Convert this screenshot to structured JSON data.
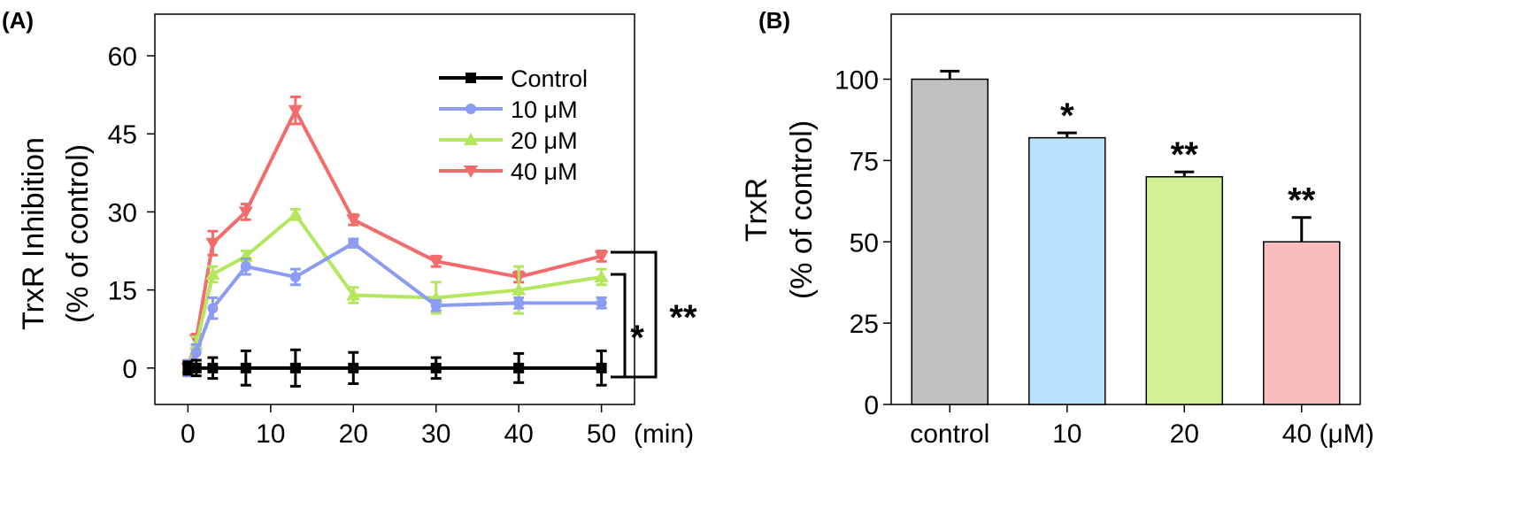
{
  "chart_data": [
    {
      "panel_label": "(A)",
      "type": "line",
      "title": "",
      "xlabel": "(min)",
      "ylabel_lines": [
        "TrxR Inhibition",
        "(% of control)"
      ],
      "xlim": [
        -4,
        54
      ],
      "ylim": [
        -7,
        68
      ],
      "xticks": [
        0,
        10,
        20,
        30,
        40,
        50
      ],
      "yticks": [
        0,
        15,
        30,
        45,
        60
      ],
      "grid": false,
      "legend_position": "top-right",
      "series": [
        {
          "name": "Control",
          "color": "#000000",
          "marker": "square",
          "x": [
            0,
            1,
            3,
            7,
            13,
            20,
            30,
            40,
            50
          ],
          "y": [
            0,
            0,
            0,
            0,
            0,
            0,
            0,
            0,
            0
          ],
          "err": [
            1.2,
            1.5,
            2,
            3.3,
            3.5,
            3,
            2,
            2.8,
            3.3
          ]
        },
        {
          "name": "10 μM",
          "color": "#8C9CF5",
          "marker": "circle",
          "x": [
            0,
            1,
            3,
            7,
            13,
            20,
            30,
            40,
            50
          ],
          "y": [
            0,
            3,
            11.5,
            19.5,
            17.5,
            24,
            12,
            12.5,
            12.5
          ],
          "err": [
            1.5,
            1.5,
            2,
            1.5,
            1.5,
            0.8,
            1,
            1,
            1
          ]
        },
        {
          "name": "20 μM",
          "color": "#B5E75E",
          "marker": "triangle-up",
          "x": [
            0,
            1,
            3,
            7,
            13,
            20,
            30,
            40,
            50
          ],
          "y": [
            0,
            4.5,
            18,
            21.5,
            29.5,
            14,
            13.5,
            15,
            17.5
          ],
          "err": [
            1.5,
            1.5,
            1.5,
            1,
            1,
            1.5,
            3,
            4.5,
            1.5
          ]
        },
        {
          "name": "40 μM",
          "color": "#F36B6B",
          "marker": "triangle-down",
          "x": [
            0,
            1,
            3,
            7,
            13,
            20,
            30,
            40,
            50
          ],
          "y": [
            0,
            5.5,
            24,
            30,
            49.5,
            28.5,
            20.5,
            17.5,
            21.5
          ],
          "err": [
            1.5,
            1,
            2.3,
            1.5,
            2.6,
            1,
            1,
            1,
            1
          ]
        }
      ],
      "significance": [
        {
          "label": "*",
          "from_series": "Control",
          "to_series": "20 μM"
        },
        {
          "label": "**",
          "from_series": "Control",
          "to_series": "40 μM"
        }
      ]
    },
    {
      "panel_label": "(B)",
      "type": "bar",
      "title": "",
      "xlabel": "",
      "ylabel_lines": [
        "TrxR",
        "(% of control)"
      ],
      "categories": [
        "control",
        "10",
        "20",
        "40 (μM)"
      ],
      "values": [
        100,
        82,
        70,
        50
      ],
      "errors": [
        2.5,
        1.5,
        1.5,
        7.5
      ],
      "significance": [
        "",
        "*",
        "**",
        "**"
      ],
      "colors": [
        "#C0C0C0",
        "#B9E3FB",
        "#D2EF96",
        "#F8BDBD"
      ],
      "ylim": [
        0,
        120
      ],
      "yticks": [
        0,
        25,
        50,
        75,
        100
      ],
      "grid": false
    }
  ]
}
